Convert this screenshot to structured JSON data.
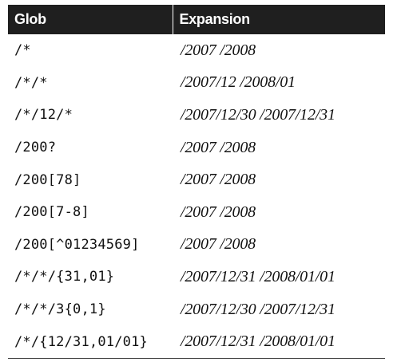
{
  "table": {
    "headers": {
      "glob": "Glob",
      "expansion": "Expansion"
    },
    "rows": [
      {
        "glob": "/*",
        "expansion": "/2007 /2008"
      },
      {
        "glob": "/*/*",
        "expansion": "/2007/12 /2008/01"
      },
      {
        "glob": "/*/12/*",
        "expansion": "/2007/12/30 /2007/12/31"
      },
      {
        "glob": "/200?",
        "expansion": "/2007 /2008"
      },
      {
        "glob": "/200[78]",
        "expansion": "/2007 /2008"
      },
      {
        "glob": "/200[7-8]",
        "expansion": "/2007 /2008"
      },
      {
        "glob": "/200[^01234569]",
        "expansion": "/2007 /2008"
      },
      {
        "glob": "/*/*/{31,01}",
        "expansion": "/2007/12/31 /2008/01/01"
      },
      {
        "glob": "/*/*/3{0,1}",
        "expansion": "/2007/12/30 /2007/12/31"
      },
      {
        "glob": "/*/{12/31,01/01}",
        "expansion": "/2007/12/31 /2008/01/01"
      }
    ]
  },
  "colors": {
    "header_bg": "#1f1f1f",
    "header_text": "#ffffff",
    "body_text": "#111111"
  }
}
